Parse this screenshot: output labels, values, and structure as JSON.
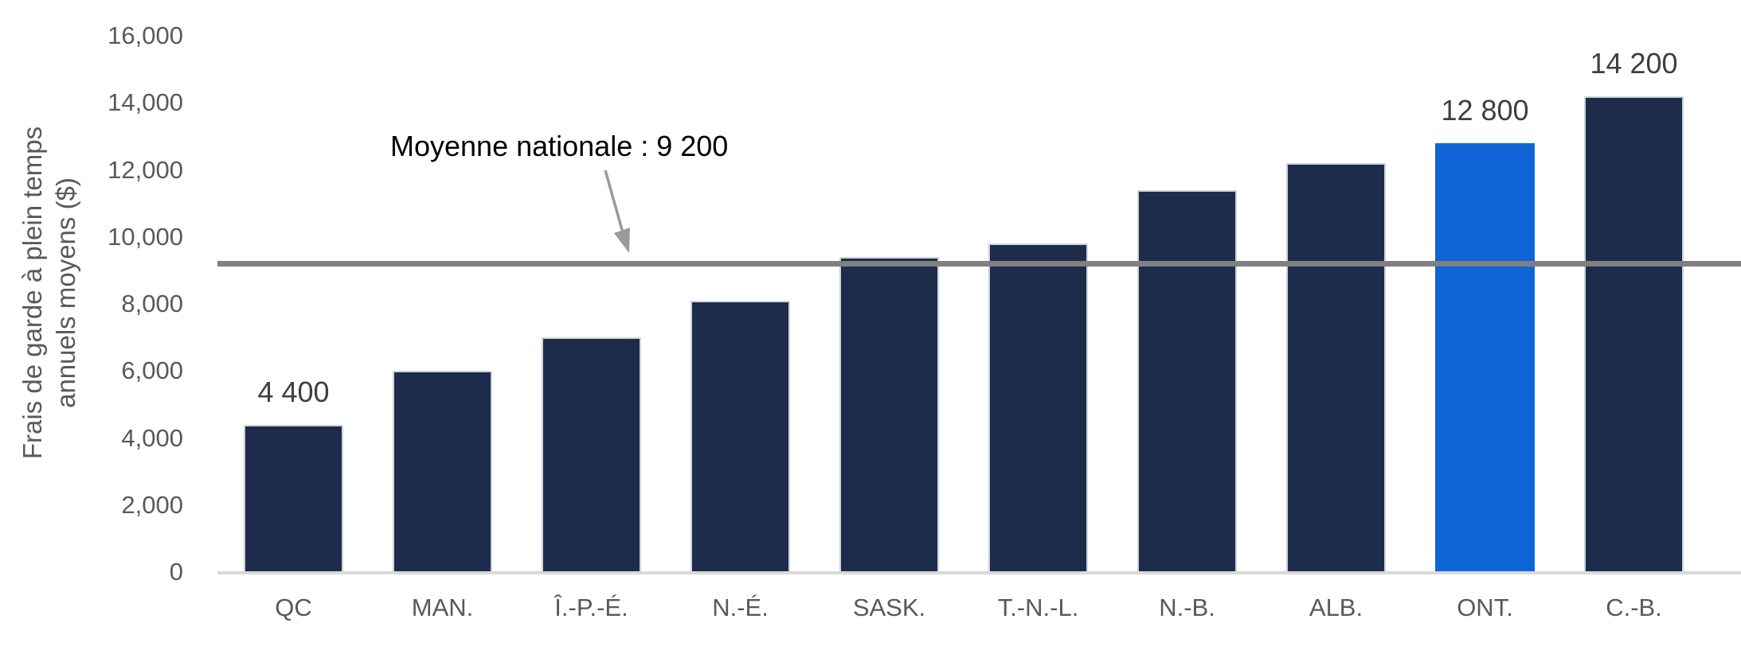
{
  "chart_data": {
    "type": "bar",
    "title": "",
    "ylabel_lines": [
      "Frais de garde à plein temps",
      "annuels moyens ($)"
    ],
    "xlabel": "",
    "categories": [
      "QC",
      "MAN.",
      "Î.-P.-É.",
      "N.-É.",
      "SASK.",
      "T.-N.-L.",
      "N.-B.",
      "ALB.",
      "ONT.",
      "C.-B."
    ],
    "values": [
      4400,
      6000,
      7000,
      8100,
      9400,
      9800,
      11400,
      12200,
      12800,
      14200
    ],
    "bar_labels": [
      "4 400",
      "",
      "",
      "",
      "",
      "",
      "",
      "",
      "12 800",
      "14 200"
    ],
    "highlight_index": 8,
    "annotation": "Moyenne nationale : 9 200",
    "national_average_value": 9200,
    "ylim": [
      0,
      16000
    ],
    "ytick_step": 2000,
    "ytick_values": [
      0,
      2000,
      4000,
      6000,
      8000,
      10000,
      12000,
      14000,
      16000
    ],
    "ytick_labels": [
      "0",
      "2,000",
      "4,000",
      "6,000",
      "8,000",
      "10,000",
      "12,000",
      "14,000",
      "16,000"
    ],
    "grid": "off",
    "legend": "none",
    "colors": {
      "bar": "#1E2C4C",
      "highlight_bar": "#1065D6",
      "average_line": "#808080",
      "axis_line": "#D9D9D9",
      "tick_text": "#595959",
      "axis_title_text": "#595959",
      "data_label_text": "#3F3F3F",
      "annotation_text": "#000000",
      "arrow": "#9A9A9A"
    }
  }
}
